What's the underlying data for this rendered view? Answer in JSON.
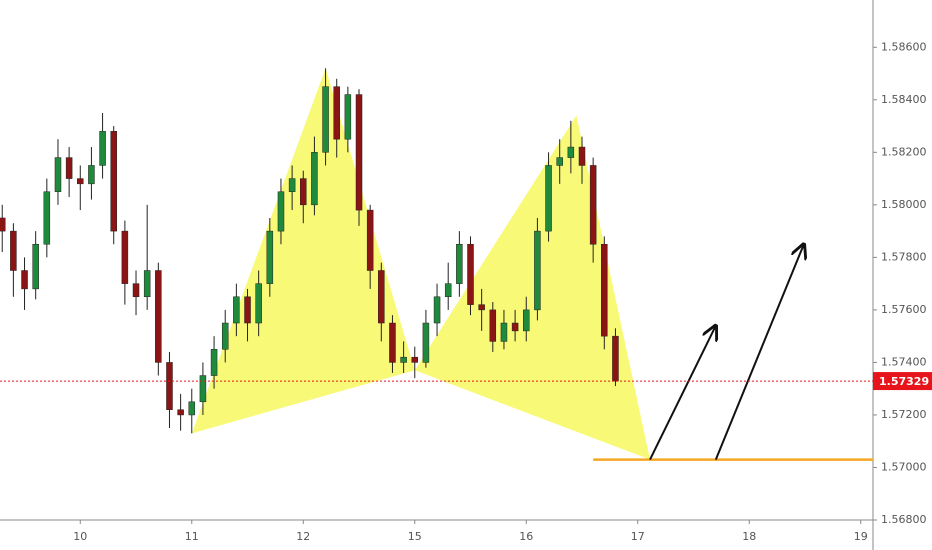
{
  "chart_data": {
    "type": "candlestick",
    "x": [
      -0.7,
      -0.6,
      -0.5,
      -0.4,
      -0.3,
      -0.2,
      -0.1,
      0.0,
      0.1,
      0.2,
      0.3,
      0.4,
      0.5,
      0.6,
      0.7,
      0.8,
      0.9,
      1.0,
      1.1,
      1.2,
      1.3,
      1.4,
      1.5,
      1.6,
      1.7,
      1.8,
      1.9,
      2.0,
      2.1,
      2.2,
      2.3,
      2.4,
      2.5,
      2.6,
      2.7,
      2.8,
      2.9,
      3.0,
      3.1,
      3.2,
      3.3,
      3.4,
      3.5,
      3.6,
      3.7,
      3.8,
      3.9,
      4.0,
      4.1,
      4.2,
      4.3,
      4.4,
      4.5,
      4.6,
      4.7,
      4.8
    ],
    "open": [
      1.5795,
      1.579,
      1.5775,
      1.5768,
      1.5785,
      1.5805,
      1.5818,
      1.581,
      1.5808,
      1.5815,
      1.5828,
      1.579,
      1.577,
      1.5765,
      1.5775,
      1.574,
      1.5722,
      1.572,
      1.5725,
      1.5735,
      1.5745,
      1.5755,
      1.5765,
      1.5755,
      1.577,
      1.579,
      1.5805,
      1.581,
      1.58,
      1.582,
      1.5845,
      1.5825,
      1.5842,
      1.5798,
      1.5775,
      1.5755,
      1.574,
      1.5742,
      1.574,
      1.5755,
      1.5765,
      1.577,
      1.5785,
      1.5762,
      1.576,
      1.5748,
      1.5755,
      1.5752,
      1.576,
      1.579,
      1.5815,
      1.5818,
      1.5822,
      1.5815,
      1.5785,
      1.575
    ],
    "high": [
      1.58,
      1.5793,
      1.578,
      1.579,
      1.581,
      1.5825,
      1.5822,
      1.5815,
      1.5822,
      1.5835,
      1.583,
      1.5794,
      1.5775,
      1.58,
      1.5778,
      1.5744,
      1.5728,
      1.573,
      1.574,
      1.575,
      1.576,
      1.577,
      1.5768,
      1.5775,
      1.5795,
      1.581,
      1.5815,
      1.5813,
      1.5826,
      1.5852,
      1.5848,
      1.5845,
      1.5844,
      1.58,
      1.5778,
      1.5758,
      1.5748,
      1.5746,
      1.576,
      1.577,
      1.5778,
      1.579,
      1.5788,
      1.5768,
      1.5763,
      1.576,
      1.576,
      1.5765,
      1.5795,
      1.582,
      1.5825,
      1.5832,
      1.5826,
      1.5818,
      1.5788,
      1.5753
    ],
    "low": [
      1.5782,
      1.5765,
      1.576,
      1.5764,
      1.578,
      1.58,
      1.5803,
      1.5798,
      1.5802,
      1.581,
      1.5785,
      1.5762,
      1.5758,
      1.576,
      1.5735,
      1.5715,
      1.5714,
      1.5713,
      1.572,
      1.573,
      1.574,
      1.575,
      1.5748,
      1.575,
      1.5765,
      1.5785,
      1.5798,
      1.5793,
      1.5796,
      1.5815,
      1.5818,
      1.582,
      1.5792,
      1.5768,
      1.5748,
      1.5736,
      1.5736,
      1.5734,
      1.5738,
      1.575,
      1.576,
      1.5765,
      1.5758,
      1.5752,
      1.5744,
      1.5745,
      1.5748,
      1.5748,
      1.5756,
      1.5786,
      1.5808,
      1.5812,
      1.5808,
      1.5778,
      1.5745,
      1.5731
    ],
    "close": [
      1.579,
      1.5775,
      1.5768,
      1.5785,
      1.5805,
      1.5818,
      1.581,
      1.5808,
      1.5815,
      1.5828,
      1.579,
      1.577,
      1.5765,
      1.5775,
      1.574,
      1.5722,
      1.572,
      1.5725,
      1.5735,
      1.5745,
      1.5755,
      1.5765,
      1.5755,
      1.577,
      1.579,
      1.5805,
      1.581,
      1.58,
      1.582,
      1.5845,
      1.5825,
      1.5842,
      1.5798,
      1.5775,
      1.5755,
      1.574,
      1.5742,
      1.574,
      1.5755,
      1.5765,
      1.577,
      1.5785,
      1.5762,
      1.576,
      1.5748,
      1.5755,
      1.5752,
      1.576,
      1.579,
      1.5815,
      1.5818,
      1.5822,
      1.5815,
      1.5785,
      1.575,
      1.57329
    ],
    "up_color": "#1f8a3b",
    "down_color": "#8b1414",
    "xlim": [
      -0.72,
      7.11
    ],
    "ylim": [
      1.568,
      1.5878
    ],
    "xticks": [
      {
        "value": 0,
        "label": "10"
      },
      {
        "value": 1,
        "label": "11"
      },
      {
        "value": 2,
        "label": "12"
      },
      {
        "value": 3,
        "label": "15"
      },
      {
        "value": 4,
        "label": "16"
      },
      {
        "value": 5,
        "label": "17"
      },
      {
        "value": 6,
        "label": "18"
      },
      {
        "value": 7,
        "label": "19"
      }
    ],
    "yticks": [
      {
        "value": 1.568,
        "label": "1.56800"
      },
      {
        "value": 1.57,
        "label": "1.57000"
      },
      {
        "value": 1.572,
        "label": "1.57200"
      },
      {
        "value": 1.574,
        "label": "1.57400"
      },
      {
        "value": 1.576,
        "label": "1.57600"
      },
      {
        "value": 1.578,
        "label": "1.57800"
      },
      {
        "value": 1.58,
        "label": "1.58000"
      },
      {
        "value": 1.582,
        "label": "1.58200"
      },
      {
        "value": 1.584,
        "label": "1.58400"
      },
      {
        "value": 1.586,
        "label": "1.58600"
      }
    ],
    "last_price": 1.57329,
    "last_price_color": "#e8141c",
    "pattern": {
      "x": [
        1.0,
        2.2,
        3.0,
        4.45,
        5.11
      ],
      "y": [
        1.5713,
        1.5852,
        1.5737,
        1.5834,
        1.5703
      ],
      "color": "#f8f860"
    },
    "target": {
      "y": 1.5703,
      "x_start": 4.6,
      "color": "#f5a623"
    },
    "arrows": [
      {
        "x": [
          5.11,
          5.7
        ],
        "y": [
          1.5703,
          1.5754
        ]
      },
      {
        "x": [
          5.7,
          6.49
        ],
        "y": [
          1.5703,
          1.5785
        ]
      }
    ]
  }
}
